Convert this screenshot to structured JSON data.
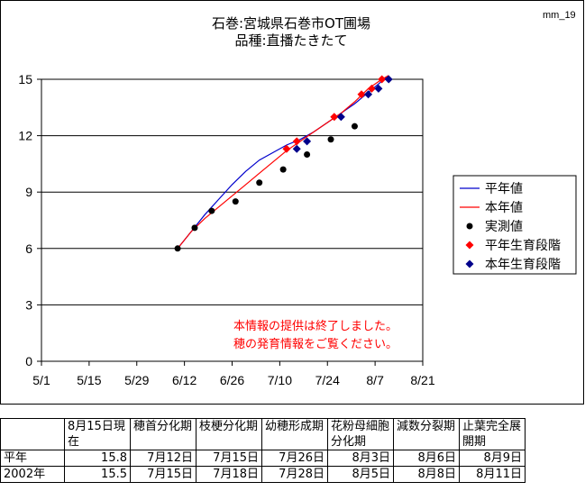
{
  "chart_id": "mm_19",
  "chart_data": {
    "type": "line",
    "title": "石巻:宮城県石巻市OT圃場",
    "subtitle": "品種:直播たきたて",
    "xlabel": "",
    "ylabel": "",
    "xlim": [
      "5/1",
      "8/21"
    ],
    "ylim": [
      0,
      15
    ],
    "x_ticks": [
      "5/1",
      "5/15",
      "5/29",
      "6/12",
      "6/26",
      "7/10",
      "7/24",
      "8/7",
      "8/21"
    ],
    "y_ticks": [
      "0",
      "3",
      "6",
      "9",
      "12",
      "15"
    ],
    "grid": "horizontal",
    "legend_position": "right",
    "series": [
      {
        "name": "平年値",
        "kind": "line",
        "color": "#0000cc",
        "points": [
          [
            "6/10",
            6.0
          ],
          [
            "6/14",
            6.9
          ],
          [
            "6/18",
            7.8
          ],
          [
            "6/22",
            8.6
          ],
          [
            "6/26",
            9.4
          ],
          [
            "6/30",
            10.1
          ],
          [
            "7/4",
            10.7
          ],
          [
            "7/8",
            11.1
          ],
          [
            "7/12",
            11.5
          ],
          [
            "7/16",
            11.8
          ],
          [
            "7/20",
            12.2
          ],
          [
            "7/24",
            12.7
          ],
          [
            "7/28",
            13.2
          ],
          [
            "8/1",
            13.7
          ],
          [
            "8/5",
            14.3
          ],
          [
            "8/9",
            14.9
          ],
          [
            "8/11",
            15.2
          ]
        ]
      },
      {
        "name": "本年値",
        "kind": "line",
        "color": "#ff0000",
        "points": [
          [
            "6/10",
            6.0
          ],
          [
            "6/14",
            6.9
          ],
          [
            "6/18",
            7.6
          ],
          [
            "6/22",
            8.2
          ],
          [
            "6/26",
            8.8
          ],
          [
            "6/30",
            9.4
          ],
          [
            "7/4",
            10.0
          ],
          [
            "7/8",
            10.6
          ],
          [
            "7/12",
            11.2
          ],
          [
            "7/16",
            11.7
          ],
          [
            "7/20",
            12.2
          ],
          [
            "7/24",
            12.7
          ],
          [
            "7/28",
            13.2
          ],
          [
            "8/1",
            13.8
          ],
          [
            "8/5",
            14.5
          ],
          [
            "8/9",
            15.0
          ],
          [
            "8/11",
            15.2
          ]
        ]
      },
      {
        "name": "実測値",
        "kind": "circle",
        "color": "#000000",
        "points": [
          [
            "6/10",
            6.0
          ],
          [
            "6/15",
            7.1
          ],
          [
            "6/20",
            8.0
          ],
          [
            "6/27",
            8.5
          ],
          [
            "7/4",
            9.5
          ],
          [
            "7/11",
            10.2
          ],
          [
            "7/18",
            11.0
          ],
          [
            "7/25",
            11.8
          ],
          [
            "8/1",
            12.5
          ]
        ]
      },
      {
        "name": "平年生育段階",
        "kind": "diamond",
        "color": "#ff0000",
        "points": [
          [
            "7/12",
            11.3
          ],
          [
            "7/15",
            11.7
          ],
          [
            "7/26",
            13.0
          ],
          [
            "8/3",
            14.2
          ],
          [
            "8/6",
            14.5
          ],
          [
            "8/9",
            15.0
          ]
        ]
      },
      {
        "name": "本年生育段階",
        "kind": "diamond",
        "color": "#00008b",
        "points": [
          [
            "7/15",
            11.3
          ],
          [
            "7/18",
            11.7
          ],
          [
            "7/28",
            13.0
          ],
          [
            "8/5",
            14.2
          ],
          [
            "8/8",
            14.5
          ],
          [
            "8/11",
            15.0
          ]
        ]
      }
    ]
  },
  "notice": {
    "line1": "本情報の提供は終了しました。",
    "line2": "穂の発育情報をご覧ください。",
    "color": "#ff0000"
  },
  "table": {
    "header": [
      "",
      "8月15日現在",
      "穂首分化期",
      "枝梗分化期",
      "幼穂形成期",
      "花粉母細胞分化期",
      "減数分裂期",
      "止葉完全展開期"
    ],
    "rows": [
      {
        "label": "平年",
        "values": [
          "15.8",
          "7月12日",
          "7月15日",
          "7月26日",
          "8月3日",
          "8月6日",
          "8月9日"
        ]
      },
      {
        "label": "2002年",
        "values": [
          "15.5",
          "7月15日",
          "7月18日",
          "7月28日",
          "8月5日",
          "8月8日",
          "8月11日"
        ]
      }
    ]
  }
}
